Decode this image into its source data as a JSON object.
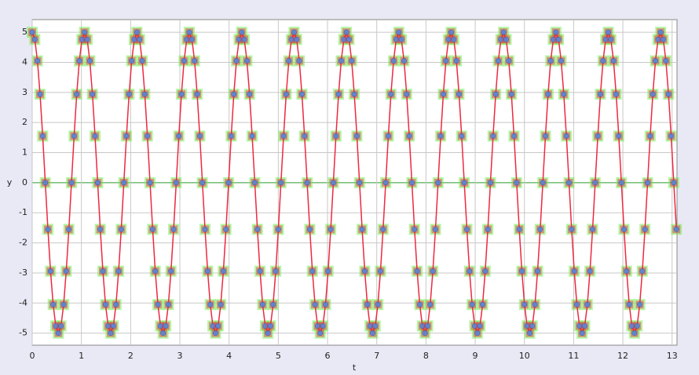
{
  "chart_data": {
    "type": "scatter",
    "xlabel": "t",
    "ylabel": "y",
    "xlim": [
      0,
      13.1
    ],
    "ylim": [
      -5.4,
      5.42
    ],
    "xticks": [
      0,
      1,
      2,
      3,
      4,
      5,
      6,
      7,
      8,
      9,
      10,
      11,
      12,
      13
    ],
    "yticks": [
      -5,
      -4,
      -3,
      -2,
      -1,
      0,
      1,
      2,
      3,
      4,
      5
    ],
    "grid": true,
    "zero_line_color": "#2a9a2a",
    "color": "#ee2840",
    "marker_color": "#5a86d8",
    "halo_color": "#77ee55",
    "x": [
      0,
      0.0532,
      0.1064,
      0.1596,
      0.2128,
      0.266,
      0.3192,
      0.3724,
      0.4256,
      0.4788,
      0.532,
      0.5852,
      0.6384,
      0.6916,
      0.7448,
      0.798,
      0.8512,
      0.9044,
      0.9576,
      1.0108,
      1.064,
      1.1172,
      1.1704,
      1.2236,
      1.2768,
      1.33,
      1.3832,
      1.4364,
      1.4896,
      1.5428,
      1.596,
      1.6492,
      1.7024,
      1.7556,
      1.8088,
      1.862,
      1.9152,
      1.9684,
      2.0216,
      2.0748,
      2.128,
      2.1812,
      2.2344,
      2.2876,
      2.3408,
      2.394,
      2.4472,
      2.5004,
      2.5536,
      2.6068,
      2.66,
      2.7132,
      2.7664,
      2.8196,
      2.8728,
      2.926,
      2.9792,
      3.0324,
      3.0856,
      3.1388,
      3.192,
      3.2452,
      3.2984,
      3.3516,
      3.4048,
      3.458,
      3.5112,
      3.5644,
      3.6176,
      3.6708,
      3.724,
      3.7772,
      3.8304,
      3.8836,
      3.9368,
      3.99,
      4.0432,
      4.0964,
      4.1496,
      4.2028,
      4.256,
      4.3092,
      4.3624,
      4.4156,
      4.4688,
      4.522,
      4.5752,
      4.6284,
      4.6816,
      4.7348,
      4.788,
      4.8412,
      4.8944,
      4.9476,
      5.0008,
      5.054,
      5.1072,
      5.1604,
      5.2136,
      5.2668,
      5.32,
      5.3732,
      5.4264,
      5.4796,
      5.5328,
      5.586,
      5.6392,
      5.6924,
      5.7456,
      5.7988,
      5.852,
      5.9052,
      5.9584,
      6.0116,
      6.0648,
      6.118,
      6.1712,
      6.2244,
      6.2776,
      6.3308,
      6.384,
      6.4372,
      6.4904,
      6.5436,
      6.5968,
      6.65,
      6.7032,
      6.7564,
      6.8096,
      6.8628,
      6.916,
      6.9692,
      7.0224,
      7.0756,
      7.1288,
      7.182,
      7.2352,
      7.2884,
      7.3416,
      7.3948,
      7.448,
      7.5012,
      7.5544,
      7.6076,
      7.6608,
      7.714,
      7.7672,
      7.8204,
      7.8736,
      7.9268,
      7.98,
      8.0332,
      8.0864,
      8.1396,
      8.1928,
      8.246,
      8.2992,
      8.3524,
      8.4056,
      8.4588,
      8.512,
      8.5652,
      8.6184,
      8.6716,
      8.7248,
      8.778,
      8.8312,
      8.8844,
      8.9376,
      8.9908,
      9.044,
      9.0972,
      9.1504,
      9.2036,
      9.2568,
      9.31,
      9.3632,
      9.4164,
      9.4696,
      9.5228,
      9.576,
      9.6292,
      9.6824,
      9.7356,
      9.7888,
      9.842,
      9.8952,
      9.9484,
      10.0016,
      10.0548,
      10.108,
      10.1612,
      10.2144,
      10.2676,
      10.3208,
      10.374,
      10.4272,
      10.4804,
      10.5336,
      10.5868,
      10.64,
      10.6932,
      10.7464,
      10.7996,
      10.8528,
      10.906,
      10.9592,
      11.0124,
      11.0656,
      11.1188,
      11.172,
      11.2252,
      11.2784,
      11.3316,
      11.3848,
      11.438,
      11.4912,
      11.5444,
      11.5976,
      11.6508,
      11.704,
      11.7572,
      11.8104,
      11.8636,
      11.9168,
      11.97,
      12.0232,
      12.0764,
      12.1296,
      12.1828,
      12.236,
      12.2892,
      12.3424,
      12.3956,
      12.4488,
      12.502,
      12.5552,
      12.6084,
      12.6616,
      12.7148,
      12.768,
      12.8212,
      12.8744,
      12.9276,
      12.9808,
      13.034,
      13.0872
    ],
    "values": [
      5,
      4.76,
      4.05,
      2.94,
      1.55,
      0,
      -1.55,
      -2.94,
      -4.05,
      -4.76,
      -5,
      -4.76,
      -4.05,
      -2.94,
      -1.55,
      0,
      1.55,
      2.94,
      4.05,
      4.76,
      5,
      4.76,
      4.05,
      2.94,
      1.55,
      0,
      -1.55,
      -2.94,
      -4.05,
      -4.76,
      -5,
      -4.76,
      -4.05,
      -2.94,
      -1.55,
      0,
      1.55,
      2.94,
      4.05,
      4.76,
      5,
      4.76,
      4.05,
      2.94,
      1.55,
      0,
      -1.55,
      -2.94,
      -4.05,
      -4.76,
      -5,
      -4.76,
      -4.05,
      -2.94,
      -1.55,
      0,
      1.55,
      2.94,
      4.05,
      4.76,
      5,
      4.76,
      4.05,
      2.94,
      1.55,
      0,
      -1.55,
      -2.94,
      -4.05,
      -4.76,
      -5,
      -4.76,
      -4.05,
      -2.94,
      -1.55,
      0,
      1.55,
      2.94,
      4.05,
      4.76,
      5,
      4.76,
      4.05,
      2.94,
      1.55,
      0,
      -1.55,
      -2.94,
      -4.05,
      -4.76,
      -5,
      -4.76,
      -4.05,
      -2.94,
      -1.55,
      0,
      1.55,
      2.94,
      4.05,
      4.76,
      5,
      4.76,
      4.05,
      2.94,
      1.55,
      0,
      -1.55,
      -2.94,
      -4.05,
      -4.76,
      -5,
      -4.76,
      -4.05,
      -2.94,
      -1.55,
      0,
      1.55,
      2.94,
      4.05,
      4.76,
      5,
      4.76,
      4.05,
      2.94,
      1.55,
      0,
      -1.55,
      -2.94,
      -4.05,
      -4.76,
      -5,
      -4.76,
      -4.05,
      -2.94,
      -1.55,
      0,
      1.55,
      2.94,
      4.05,
      4.76,
      5,
      4.76,
      4.05,
      2.94,
      1.55,
      0,
      -1.55,
      -2.94,
      -4.05,
      -4.76,
      -5,
      -4.76,
      -4.05,
      -2.94,
      -1.55,
      0,
      1.55,
      2.94,
      4.05,
      4.76,
      5,
      4.76,
      4.05,
      2.94,
      1.55,
      0,
      -1.55,
      -2.94,
      -4.05,
      -4.76,
      -5,
      -4.76,
      -4.05,
      -2.94,
      -1.55,
      0,
      1.55,
      2.94,
      4.05,
      4.76,
      5,
      4.76,
      4.05,
      2.94,
      1.55,
      0,
      -1.55,
      -2.94,
      -4.05,
      -4.76,
      -5,
      -4.76,
      -4.05,
      -2.94,
      -1.55,
      0,
      1.55,
      2.94,
      4.05,
      4.76,
      5,
      4.76,
      4.05,
      2.94,
      1.55,
      0,
      -1.55,
      -2.94,
      -4.05,
      -4.76,
      -5,
      -4.76,
      -4.05,
      -2.94,
      -1.55,
      0,
      1.55,
      2.94,
      4.05,
      4.76,
      5,
      4.76,
      4.05,
      2.94,
      1.55,
      0,
      -1.55,
      -2.94,
      -4.05,
      -4.76,
      -5,
      -4.76,
      -4.05,
      -2.94,
      -1.55,
      0,
      1.55,
      2.94,
      4.05,
      4.76,
      5,
      4.76,
      4.05,
      2.94,
      1.55,
      0,
      -1.55
    ]
  }
}
